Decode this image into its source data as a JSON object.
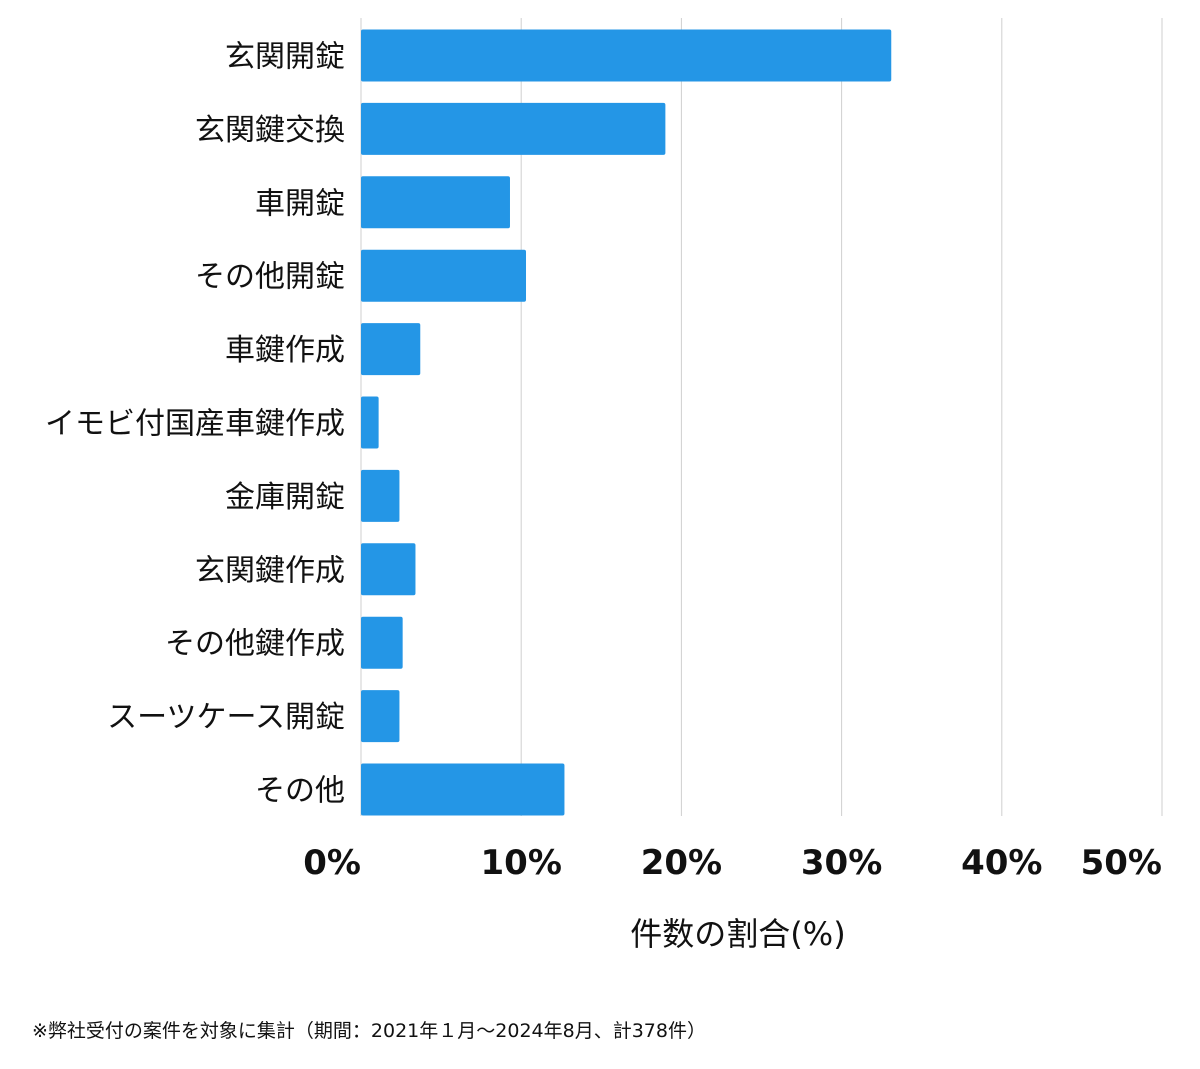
{
  "chart_data": {
    "type": "bar",
    "orientation": "horizontal",
    "categories": [
      "玄関開錠",
      "玄関鍵交換",
      "車開錠",
      "その他開錠",
      "車鍵作成",
      "イモビ付国産車鍵作成",
      "金庫開錠",
      "玄関鍵作成",
      "その他鍵作成",
      "スーツケース開錠",
      "その他"
    ],
    "values": [
      33.1,
      19.0,
      9.3,
      10.3,
      3.7,
      1.1,
      2.4,
      3.4,
      2.6,
      2.4,
      12.7
    ],
    "xlabel": "件数の割合(%)",
    "ylabel": "",
    "xlim": [
      0,
      50
    ],
    "x_ticks": [
      "0%",
      "10%",
      "20%",
      "30%",
      "40%",
      "50%"
    ],
    "grid": true,
    "bar_color": "#2496e6"
  },
  "footnote": "※弊社受付の案件を対象に集計（期間：2021年１月〜2024年8月、計378件）"
}
